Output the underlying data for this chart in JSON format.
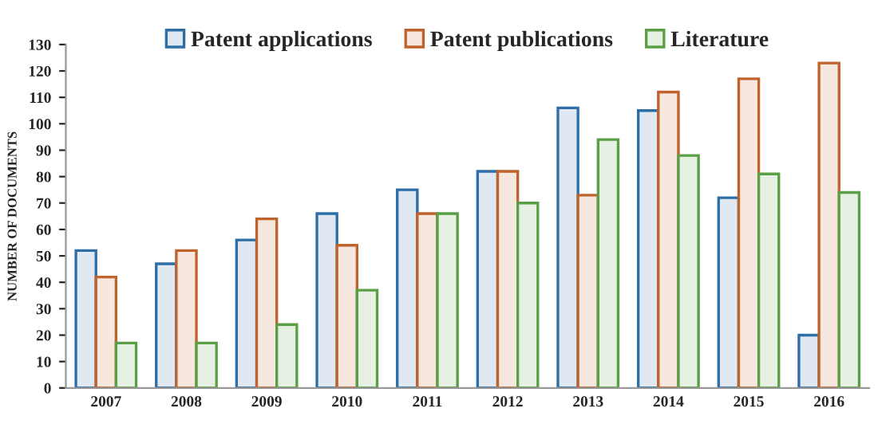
{
  "chart_data": {
    "type": "bar",
    "ylabel": "NUMBER OF DOCUMENTS",
    "categories": [
      "2007",
      "2008",
      "2009",
      "2010",
      "2011",
      "2012",
      "2013",
      "2014",
      "2015",
      "2016"
    ],
    "series": [
      {
        "name": "Patent applications",
        "color": "#2e6ea6",
        "values": [
          52,
          47,
          56,
          66,
          75,
          82,
          106,
          105,
          72,
          20
        ]
      },
      {
        "name": "Patent publications",
        "color": "#c0622b",
        "values": [
          42,
          52,
          64,
          54,
          66,
          82,
          73,
          112,
          117,
          123
        ]
      },
      {
        "name": "Literature",
        "color": "#5a9e45",
        "values": [
          17,
          17,
          24,
          37,
          66,
          70,
          94,
          88,
          81,
          74
        ]
      }
    ],
    "ylim": [
      0,
      130
    ],
    "yticks": [
      0,
      10,
      20,
      30,
      40,
      50,
      60,
      70,
      80,
      90,
      100,
      110,
      120,
      130
    ],
    "grid": false,
    "legend": "top"
  }
}
